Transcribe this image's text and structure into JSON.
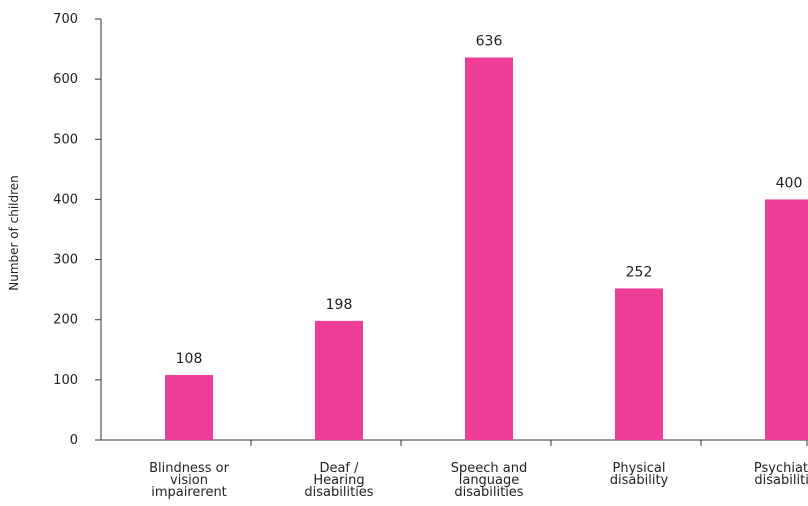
{
  "chart_data": {
    "type": "bar",
    "categories": [
      "Blindness or vision impairerent",
      "Deaf / Hearing disabilities",
      "Speech and language disabilities",
      "Physical disability",
      "Psychiatric disabilities"
    ],
    "category_lines": [
      [
        "Blindness or",
        "vision",
        "impairerent"
      ],
      [
        "Deaf /",
        "Hearing",
        "disabilities"
      ],
      [
        "Speech and",
        "language",
        "disabilities"
      ],
      [
        "Physical",
        "disability"
      ],
      [
        "Psychiatric",
        "disabilities"
      ]
    ],
    "values": [
      108,
      198,
      636,
      252,
      400
    ],
    "data_labels": [
      "108",
      "198",
      "636",
      "252",
      "400"
    ],
    "title": "",
    "xlabel": "",
    "ylabel": "Number of children",
    "ylim": [
      0,
      700
    ],
    "yticks": [
      0,
      100,
      200,
      300,
      400,
      500,
      600,
      700
    ],
    "grid": false,
    "legend": "none",
    "bar_color": "#ee3d96"
  }
}
